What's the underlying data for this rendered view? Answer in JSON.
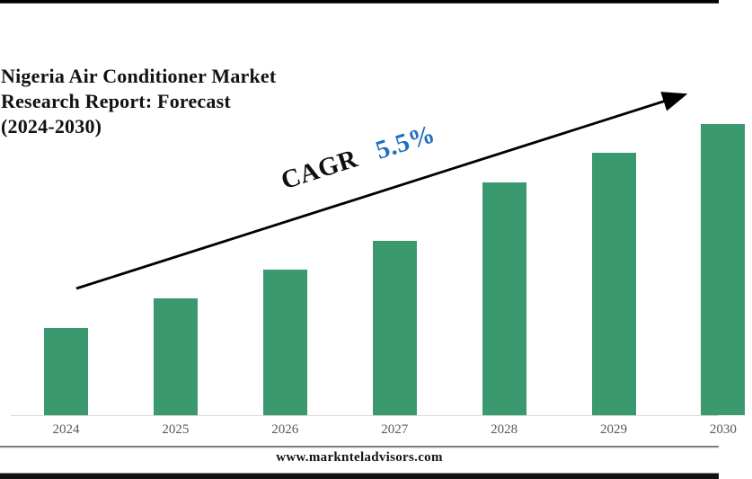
{
  "header": {
    "title_lines": [
      "Nigeria Air Conditioner Market",
      "Research Report: Forecast",
      "(2024-2030)"
    ]
  },
  "chart_data": {
    "type": "bar",
    "title": "Nigeria Air Conditioner Market Research Report: Forecast (2024-2030)",
    "categories": [
      "2024",
      "2025",
      "2026",
      "2027",
      "2028",
      "2029",
      "2030"
    ],
    "values": [
      30,
      40,
      50,
      60,
      80,
      90,
      100
    ],
    "values_note": "No y-axis or data labels shown; values are relative bar heights normalized to 2030 = 100",
    "xlabel": "",
    "ylabel": "",
    "ylim": [
      0,
      100
    ],
    "grid": false,
    "legend": false,
    "bar_color": "#3b996f",
    "axis_line_color": "#d9d9d9",
    "tick_label_color": "#595959",
    "annotation": {
      "cagr_label": "CAGR",
      "cagr_value": "5.5%",
      "cagr_value_color": "#1e6fc0",
      "arrow_description": "black diagonal trend arrow rising from lower-left to upper-right"
    }
  },
  "footer": {
    "website": "www.marknteladvisors.com"
  }
}
